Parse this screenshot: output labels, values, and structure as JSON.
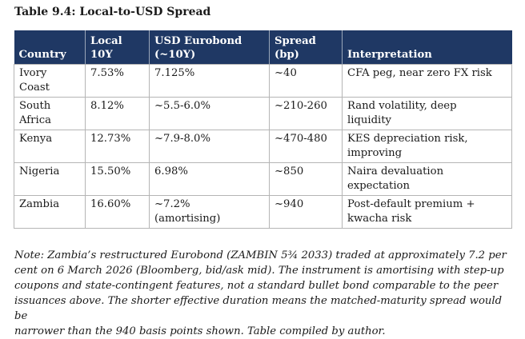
{
  "caption": "Table 9.4: Local-to-USD Spread",
  "headers": {
    "country": "Country",
    "local_line1": "Local",
    "local_line2": "10Y",
    "usd_line1": "USD Eurobond",
    "usd_line2": "(~10Y)",
    "spread_line1": "Spread",
    "spread_line2": "(bp)",
    "interpretation": "Interpretation"
  },
  "rows": [
    {
      "country_line1": "Ivory",
      "country_line2": "Coast",
      "local": "7.53%",
      "usd_line1": "7.125%",
      "usd_line2": "",
      "spread": "~40",
      "interp_line1": "CFA peg, near zero FX risk",
      "interp_line2": ""
    },
    {
      "country_line1": "South",
      "country_line2": "Africa",
      "local": "8.12%",
      "usd_line1": "~5.5-6.0%",
      "usd_line2": "",
      "spread": "~210-260",
      "interp_line1": "Rand volatility, deep",
      "interp_line2": "liquidity"
    },
    {
      "country_line1": "Kenya",
      "country_line2": "",
      "local": "12.73%",
      "usd_line1": "~7.9-8.0%",
      "usd_line2": "",
      "spread": "~470-480",
      "interp_line1": "KES depreciation risk,",
      "interp_line2": "improving"
    },
    {
      "country_line1": "Nigeria",
      "country_line2": "",
      "local": "15.50%",
      "usd_line1": "6.98%",
      "usd_line2": "",
      "spread": "~850",
      "interp_line1": "Naira devaluation",
      "interp_line2": "expectation"
    },
    {
      "country_line1": "Zambia",
      "country_line2": "",
      "local": "16.60%",
      "usd_line1": "~7.2%",
      "usd_line2": "(amortising)",
      "spread": "~940",
      "interp_line1": "Post-default premium +",
      "interp_line2": "kwacha risk"
    }
  ],
  "note": [
    "Note: Zambia’s restructured Eurobond (ZAMBIN 5¾ 2033) traded at approximately 7.2 per",
    "cent on 6 March 2026 (Bloomberg, bid/ask mid). The instrument is amortising with step-up",
    "coupons and state-contingent features, not a standard bullet bond comparable to the peer",
    "issuances above. The shorter effective duration means the matched-maturity spread would be",
    "narrower than the 940 basis points shown. Table compiled by author."
  ]
}
